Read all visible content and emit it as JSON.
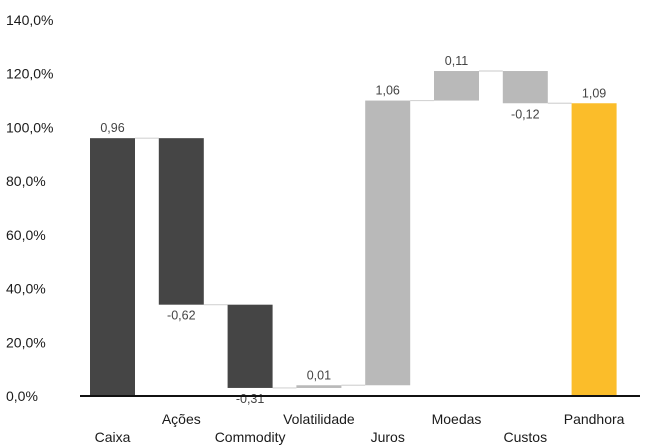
{
  "chart_data": {
    "type": "waterfall",
    "title": "",
    "xlabel": "",
    "ylabel": "",
    "ylim": [
      0,
      1.4
    ],
    "y_ticks": [
      "0,0%",
      "20,0%",
      "40,0%",
      "60,0%",
      "80,0%",
      "100,0%",
      "120,0%",
      "140,0%"
    ],
    "grid": false,
    "legend": "none",
    "categories": [
      "Caixa",
      "Ações",
      "Commodity",
      "Volatilidade",
      "Juros",
      "Moedas",
      "Custos",
      "Pandhora"
    ],
    "values": [
      0.96,
      -0.62,
      -0.31,
      0.01,
      1.06,
      0.11,
      -0.12,
      1.09
    ],
    "data_labels": [
      "0,96",
      "-0,62",
      "-0,31",
      "0,01",
      "1,06",
      "0,11",
      "-0,12",
      "1,09"
    ],
    "bar_colors": [
      "#454545",
      "#454545",
      "#454545",
      "#b9b9b9",
      "#b9b9b9",
      "#b9b9b9",
      "#b9b9b9",
      "#fbbd2a"
    ],
    "total_index": 7
  }
}
